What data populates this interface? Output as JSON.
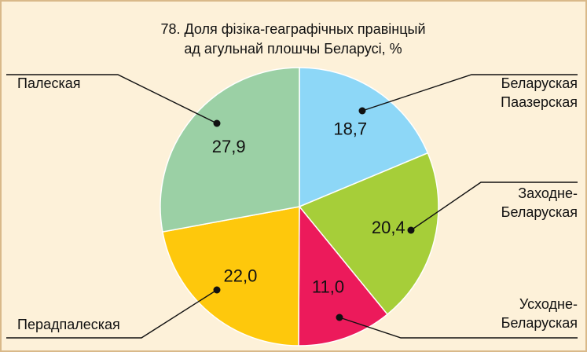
{
  "chart_data": {
    "type": "pie",
    "title": "78. Доля фізіка-геаграфічных правінцый\nад агульнай плошчы Беларусі, %",
    "categories": [
      "Беларуская\nПаазерская",
      "Заходне-\nБеларуская",
      "Усходне-\nБеларуская",
      "Перадпалеская",
      "Палеская"
    ],
    "values": [
      18.7,
      20.4,
      11.0,
      22.0,
      27.9
    ],
    "value_labels": [
      "18,7",
      "20,4",
      "11,0",
      "22,0",
      "27,9"
    ],
    "colors": [
      "#8dd7f7",
      "#a6ce39",
      "#ec1a5b",
      "#fec80c",
      "#9bd0a5"
    ]
  }
}
